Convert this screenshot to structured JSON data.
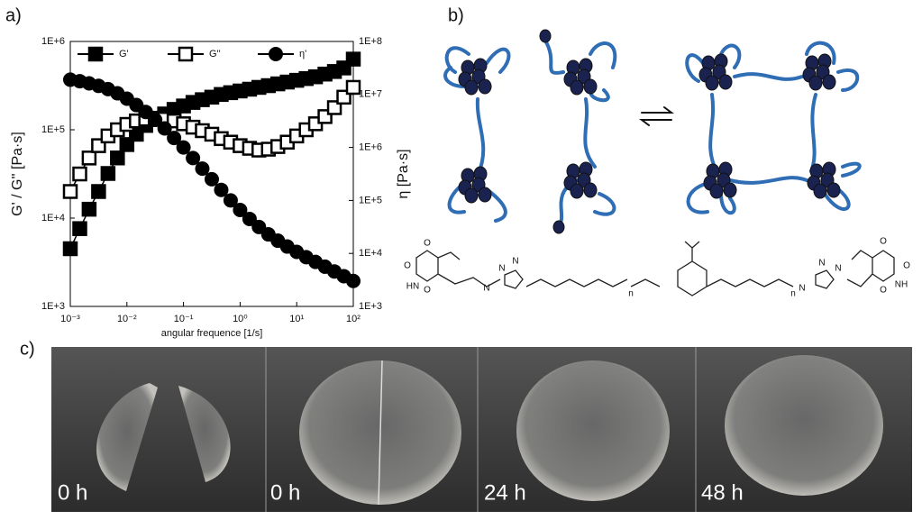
{
  "panels": {
    "a": "a)",
    "b": "b)",
    "c": "c)"
  },
  "chart_data": {
    "type": "line",
    "xlabel": "angular frequence [1/s]",
    "ylabel": "G' / G'' [Pa·s]",
    "y2label": "η [Pa·s]",
    "xscale": "log",
    "yscale": "log",
    "y2scale": "log",
    "legend": "top",
    "xlim": [
      0.001,
      100
    ],
    "ylim": [
      1000,
      1000000
    ],
    "y2lim": [
      1000,
      100000000
    ],
    "xticks": [
      {
        "value": 0.001,
        "label": "10⁻³"
      },
      {
        "value": 0.01,
        "label": "10⁻²"
      },
      {
        "value": 0.1,
        "label": "10⁻¹"
      },
      {
        "value": 1,
        "label": "10⁰"
      },
      {
        "value": 10,
        "label": "10¹"
      },
      {
        "value": 100,
        "label": "10²"
      }
    ],
    "yticks": [
      {
        "value": 1000,
        "label": "1E+3"
      },
      {
        "value": 10000,
        "label": "1E+4"
      },
      {
        "value": 100000,
        "label": "1E+5"
      },
      {
        "value": 1000000,
        "label": "1E+6"
      }
    ],
    "y2ticks": [
      {
        "value": 1000,
        "label": "1E+3"
      },
      {
        "value": 10000,
        "label": "1E+4"
      },
      {
        "value": 100000,
        "label": "1E+5"
      },
      {
        "value": 1000000,
        "label": "1E+6"
      },
      {
        "value": 10000000,
        "label": "1E+7"
      },
      {
        "value": 100000000,
        "label": "1E+8"
      }
    ],
    "x": [
      0.001,
      0.00147,
      0.00215,
      0.00316,
      0.00464,
      0.00681,
      0.01,
      0.0147,
      0.0215,
      0.0316,
      0.0464,
      0.0681,
      0.1,
      0.147,
      0.215,
      0.316,
      0.464,
      0.681,
      1,
      1.47,
      2.15,
      3.16,
      4.64,
      6.81,
      10,
      14.7,
      21.5,
      31.6,
      46.4,
      68.1,
      100
    ],
    "series": [
      {
        "name": "G'",
        "color": "#000000",
        "marker": "square-filled",
        "values": [
          4500,
          7600,
          12600,
          20000,
          32000,
          48000,
          68000,
          89000,
          112000,
          132000,
          151000,
          170000,
          186000,
          204000,
          219000,
          234000,
          251000,
          263000,
          275000,
          288000,
          302000,
          316000,
          331000,
          347000,
          363000,
          380000,
          398000,
          427000,
          457000,
          501000,
          631000
        ]
      },
      {
        "name": "G''",
        "color": "#000000",
        "marker": "square-open",
        "values": [
          20000,
          31600,
          47900,
          66100,
          85100,
          100000,
          115000,
          126000,
          132000,
          135000,
          132000,
          126000,
          117000,
          107000,
          97700,
          89100,
          79400,
          72400,
          66100,
          61700,
          58900,
          60300,
          64600,
          72400,
          85100,
          100000,
          117000,
          141000,
          178000,
          234000,
          302000
        ]
      },
      {
        "name": "η'",
        "color": "#000000",
        "marker": "circle-filled",
        "axis": "y2",
        "values": [
          19000000,
          17800000,
          16200000,
          14500000,
          12600000,
          10500000,
          8320000,
          6310000,
          4680000,
          3310000,
          2290000,
          1510000,
          1000000,
          631000,
          398000,
          251000,
          158000,
          100000,
          66100,
          44700,
          31600,
          22900,
          17400,
          13500,
          10700,
          8510,
          6920,
          5620,
          4570,
          3720,
          3020
        ]
      }
    ]
  },
  "structure": {
    "labels": [
      "O",
      "O",
      "HN",
      "O",
      "N",
      "N",
      "N",
      "n",
      "n",
      "N",
      "N",
      "N",
      "O",
      "NH",
      "O",
      "O"
    ]
  },
  "photos": {
    "labels": [
      "0 h",
      "0 h",
      "24 h",
      "48 h"
    ]
  }
}
